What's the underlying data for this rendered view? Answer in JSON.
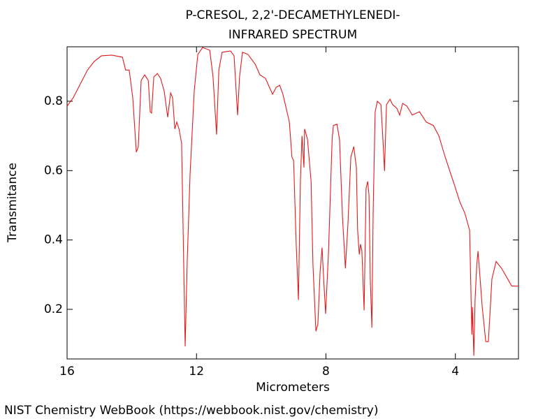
{
  "chart_data": {
    "type": "line",
    "title": "P-CRESOL, 2,2'-DECAMETHYLENEDI-",
    "subtitle": "INFRARED SPECTRUM",
    "x_label": "Micrometers",
    "y_label": "Transmitance",
    "source": "NIST Chemistry WebBook (https://webbook.nist.gov/chemistry)",
    "color": "#e41a1c",
    "xlim": [
      16,
      2.05
    ],
    "ylim": [
      0.057,
      0.957
    ],
    "xticks": [
      16,
      12,
      8,
      4
    ],
    "yticks": [
      0.2,
      0.4,
      0.6,
      0.8
    ],
    "x": [
      16.0,
      15.81,
      15.59,
      15.37,
      15.16,
      14.94,
      14.62,
      14.29,
      14.19,
      14.08,
      13.97,
      13.86,
      13.8,
      13.71,
      13.6,
      13.49,
      13.43,
      13.39,
      13.32,
      13.21,
      13.11,
      13.0,
      12.89,
      12.8,
      12.74,
      12.67,
      12.61,
      12.54,
      12.46,
      12.35,
      12.29,
      12.2,
      12.07,
      11.96,
      11.81,
      11.59,
      11.49,
      11.38,
      11.31,
      11.21,
      10.95,
      10.84,
      10.73,
      10.67,
      10.58,
      10.41,
      10.19,
      10.04,
      9.87,
      9.65,
      9.54,
      9.43,
      9.33,
      9.22,
      9.13,
      9.05,
      9.0,
      8.92,
      8.85,
      8.79,
      8.74,
      8.68,
      8.66,
      8.57,
      8.46,
      8.4,
      8.31,
      8.25,
      8.18,
      8.12,
      8.07,
      8.01,
      7.92,
      7.81,
      7.77,
      7.66,
      7.58,
      7.49,
      7.4,
      7.32,
      7.23,
      7.14,
      7.06,
      7.02,
      6.97,
      6.93,
      6.89,
      6.82,
      6.76,
      6.71,
      6.67,
      6.63,
      6.58,
      6.54,
      6.48,
      6.41,
      6.3,
      6.24,
      6.19,
      6.13,
      6.02,
      5.94,
      5.81,
      5.72,
      5.63,
      5.5,
      5.33,
      5.11,
      4.9,
      4.68,
      4.51,
      4.36,
      4.21,
      4.03,
      3.86,
      3.71,
      3.56,
      3.49,
      3.47,
      3.43,
      3.39,
      3.34,
      3.3,
      3.26,
      3.17,
      3.06,
      2.98,
      2.87,
      2.74,
      2.57,
      2.41,
      2.26,
      2.05
    ],
    "values": [
      0.786,
      0.81,
      0.85,
      0.89,
      0.915,
      0.931,
      0.933,
      0.927,
      0.89,
      0.89,
      0.81,
      0.653,
      0.669,
      0.86,
      0.876,
      0.86,
      0.77,
      0.766,
      0.87,
      0.88,
      0.866,
      0.83,
      0.754,
      0.824,
      0.81,
      0.72,
      0.74,
      0.72,
      0.679,
      0.093,
      0.328,
      0.589,
      0.83,
      0.935,
      0.955,
      0.947,
      0.87,
      0.704,
      0.89,
      0.941,
      0.945,
      0.931,
      0.76,
      0.87,
      0.941,
      0.935,
      0.907,
      0.876,
      0.866,
      0.82,
      0.84,
      0.846,
      0.82,
      0.776,
      0.74,
      0.639,
      0.629,
      0.388,
      0.227,
      0.569,
      0.7,
      0.609,
      0.72,
      0.69,
      0.569,
      0.328,
      0.137,
      0.157,
      0.308,
      0.378,
      0.288,
      0.187,
      0.368,
      0.69,
      0.73,
      0.734,
      0.69,
      0.468,
      0.318,
      0.448,
      0.639,
      0.669,
      0.609,
      0.428,
      0.358,
      0.388,
      0.368,
      0.197,
      0.549,
      0.569,
      0.529,
      0.288,
      0.147,
      0.489,
      0.77,
      0.8,
      0.79,
      0.69,
      0.599,
      0.79,
      0.806,
      0.79,
      0.78,
      0.76,
      0.794,
      0.786,
      0.76,
      0.77,
      0.74,
      0.73,
      0.7,
      0.653,
      0.609,
      0.559,
      0.509,
      0.478,
      0.428,
      0.127,
      0.207,
      0.066,
      0.227,
      0.328,
      0.368,
      0.318,
      0.207,
      0.107,
      0.107,
      0.288,
      0.338,
      0.318,
      0.292,
      0.267,
      0.267
    ]
  }
}
